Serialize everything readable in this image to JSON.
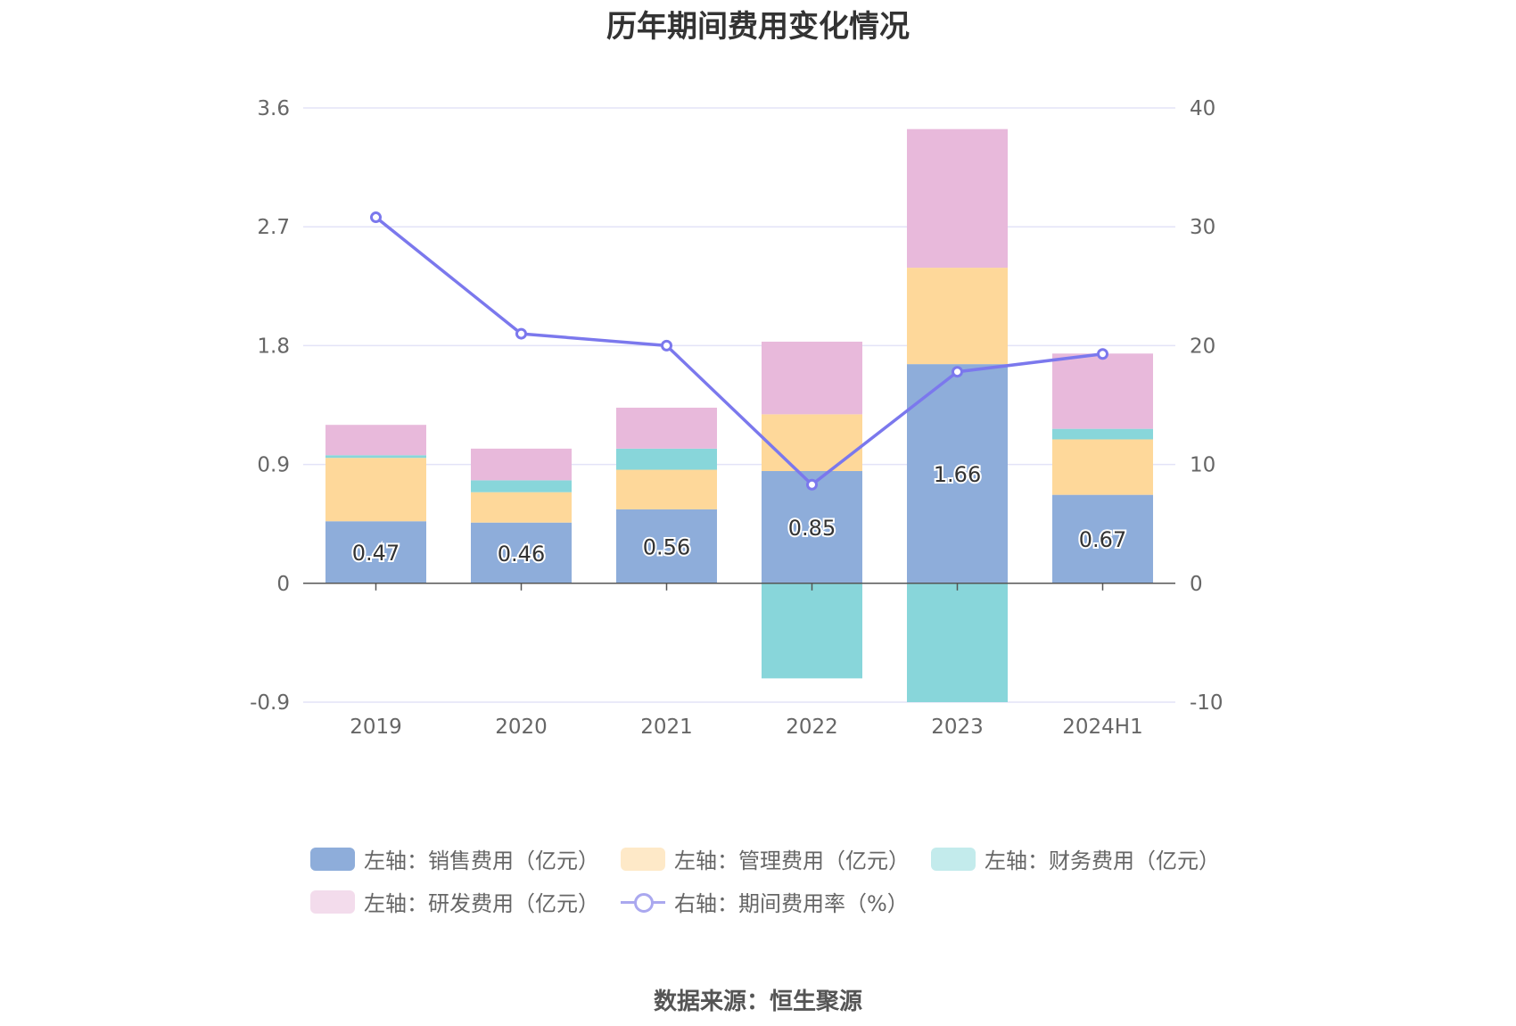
{
  "title": "历年期间费用变化情况",
  "source": "数据来源：恒生聚源",
  "colors": {
    "sales": "#8eadda",
    "admin": "#fed89a",
    "finance": "#88d6da",
    "rd": "#e8b9db",
    "rate": "#7b78ed",
    "grid": "#e3e3f7",
    "axis": "#555555",
    "tick_text": "#666666"
  },
  "chart_data": {
    "type": "bar",
    "stacked": true,
    "categories": [
      "2019",
      "2020",
      "2021",
      "2022",
      "2023",
      "2024H1"
    ],
    "y_left": {
      "ticks": [
        "-0.9",
        "0",
        "0.9",
        "1.8",
        "2.7",
        "3.6"
      ],
      "min": -0.9,
      "max": 3.6
    },
    "y_right": {
      "ticks": [
        "-10",
        "0",
        "10",
        "20",
        "30",
        "40"
      ],
      "min": -10,
      "max": 40
    },
    "grid": true,
    "legend_position": "bottom",
    "series": [
      {
        "key": "sales",
        "name": "左轴：销售费用（亿元）",
        "axis": "left",
        "values": [
          0.47,
          0.46,
          0.56,
          0.85,
          1.66,
          0.67
        ],
        "labels": [
          "0.47",
          "0.46",
          "0.56",
          "0.85",
          "1.66",
          "0.67"
        ]
      },
      {
        "key": "admin",
        "name": "左轴：管理费用（亿元）",
        "axis": "left",
        "values": [
          0.48,
          0.23,
          0.3,
          0.43,
          0.73,
          0.42
        ]
      },
      {
        "key": "finance",
        "name": "左轴：财务费用（亿元）",
        "axis": "left",
        "values": [
          0.02,
          0.09,
          0.16,
          -0.72,
          -0.9,
          0.08
        ]
      },
      {
        "key": "rd",
        "name": "左轴：研发费用（亿元）",
        "axis": "left",
        "values": [
          0.23,
          0.24,
          0.31,
          0.55,
          1.05,
          0.57
        ]
      },
      {
        "key": "rate",
        "name": "右轴：期间费用率（%）",
        "axis": "right",
        "type": "line",
        "values": [
          30.8,
          21.0,
          20.0,
          8.3,
          17.8,
          19.3
        ]
      }
    ]
  }
}
